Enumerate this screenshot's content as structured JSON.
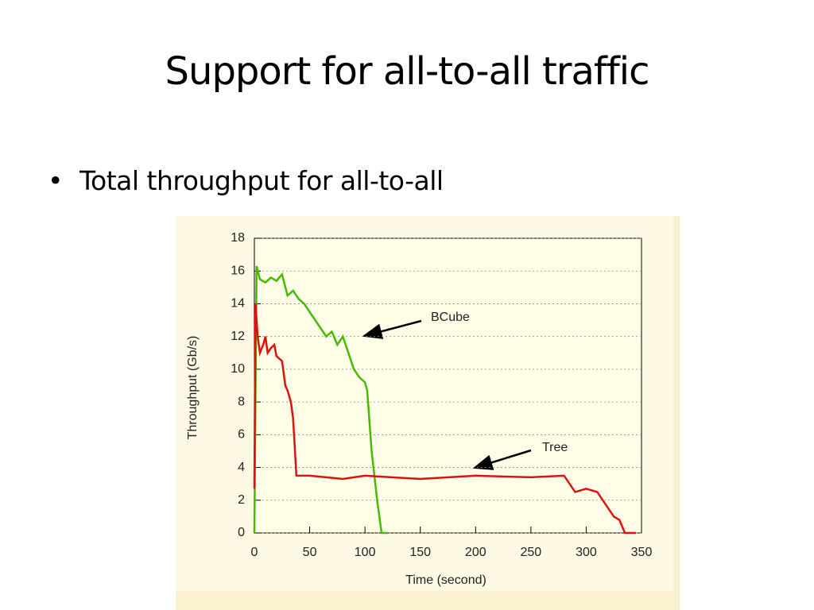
{
  "slide": {
    "title": "Support for all-to-all traffic",
    "bullets": [
      "Total throughput for all-to-all"
    ]
  },
  "chart_data": {
    "type": "line",
    "x_label": "Time (second)",
    "y_label": "Throughput (Gb/s)",
    "xlim": [
      0,
      350
    ],
    "xticks": [
      0,
      50,
      100,
      150,
      200,
      250,
      300,
      350
    ],
    "ylim": [
      0,
      18
    ],
    "yticks": [
      0,
      2,
      4,
      6,
      8,
      10,
      12,
      14,
      16,
      18
    ],
    "grid": true,
    "series": [
      {
        "name": "BCube",
        "color": "#44bb00",
        "x": [
          0,
          2,
          5,
          10,
          15,
          20,
          25,
          30,
          35,
          40,
          45,
          50,
          55,
          60,
          65,
          70,
          75,
          80,
          85,
          90,
          95,
          100,
          102,
          106,
          111,
          115,
          120
        ],
        "values": [
          0,
          16.3,
          15.5,
          15.3,
          15.6,
          15.4,
          15.8,
          14.5,
          14.8,
          14.3,
          14,
          13.5,
          13,
          12.5,
          12,
          12.3,
          11.5,
          12,
          11,
          10,
          9.5,
          9.2,
          8.7,
          5,
          2,
          0,
          0
        ]
      },
      {
        "name": "Tree",
        "color": "#dd1111",
        "x": [
          0,
          1,
          3,
          5,
          8,
          10,
          12,
          15,
          18,
          20,
          25,
          28,
          30,
          33,
          35,
          38,
          50,
          80,
          100,
          150,
          200,
          250,
          280,
          290,
          300,
          310,
          315,
          320,
          325,
          330,
          335,
          345
        ],
        "values": [
          2.7,
          14,
          12,
          11,
          11.5,
          12,
          11,
          11.3,
          11.5,
          10.8,
          10.5,
          9,
          8.7,
          8,
          7,
          3.5,
          3.5,
          3.3,
          3.5,
          3.3,
          3.5,
          3.4,
          3.5,
          2.5,
          2.7,
          2.5,
          2,
          1.5,
          1,
          0.8,
          0,
          0
        ]
      }
    ]
  }
}
